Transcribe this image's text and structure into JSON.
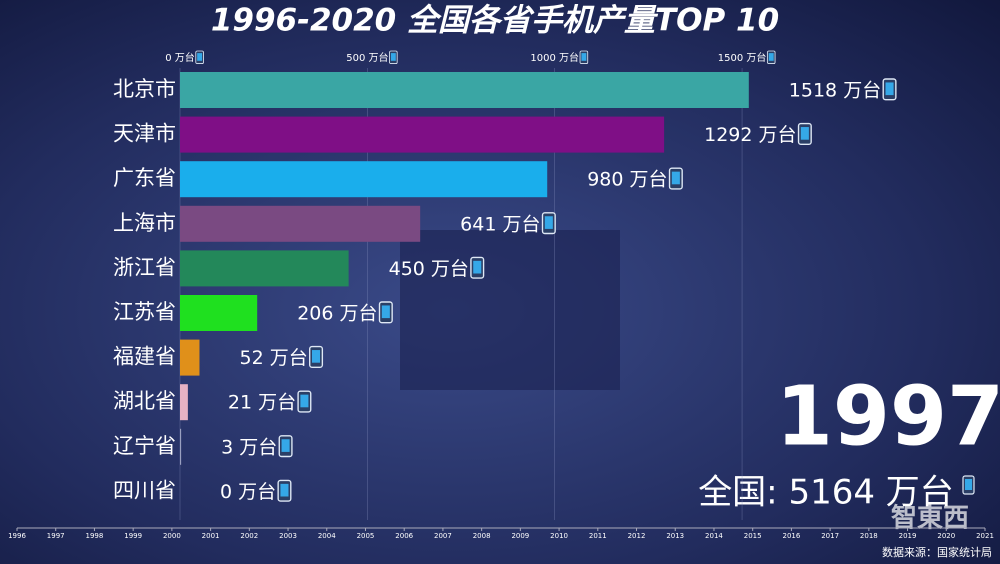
{
  "chart_data": {
    "type": "bar-race",
    "title": "1996-2020 全国各省手机产量TOP 10",
    "categories": [
      "北京市",
      "天津市",
      "广东省",
      "上海市",
      "浙江省",
      "江苏省",
      "福建省",
      "湖北省",
      "辽宁省",
      "四川省"
    ],
    "values": [
      1518,
      1292,
      980,
      641,
      450,
      206,
      52,
      21,
      3,
      0
    ],
    "value_labels": [
      "1518 万台",
      "1292 万台",
      "980 万台",
      "641 万台",
      "450 万台",
      "206 万台",
      "52 万台",
      "21 万台",
      "3 万台",
      "0 万台"
    ],
    "colors": [
      "#3aa6a4",
      "#7f0f86",
      "#1aaeec",
      "#7a4a82",
      "#23885a",
      "#1fe01f",
      "#e0901a",
      "#e6b2c4",
      "#9aa0c0",
      "#9aa0c0"
    ],
    "xlim": [
      0,
      1700
    ],
    "xticks": [
      {
        "value": 0,
        "label": "0 万台"
      },
      {
        "value": 500,
        "label": "500 万台"
      },
      {
        "value": 1000,
        "label": "1000 万台"
      },
      {
        "value": 1500,
        "label": "1500 万台"
      }
    ],
    "year": "1997",
    "total": "全国: 5164 万台",
    "timeline": {
      "xlim": [
        1996,
        2021
      ],
      "ticks": [
        1996,
        1997,
        1998,
        1999,
        2000,
        2001,
        2002,
        2003,
        2004,
        2005,
        2006,
        2007,
        2008,
        2009,
        2010,
        2011,
        2012,
        2013,
        2014,
        2015,
        2016,
        2017,
        2018,
        2019,
        2020,
        2021
      ]
    },
    "source": "数据来源：国家统计局",
    "watermark": "智東西"
  }
}
